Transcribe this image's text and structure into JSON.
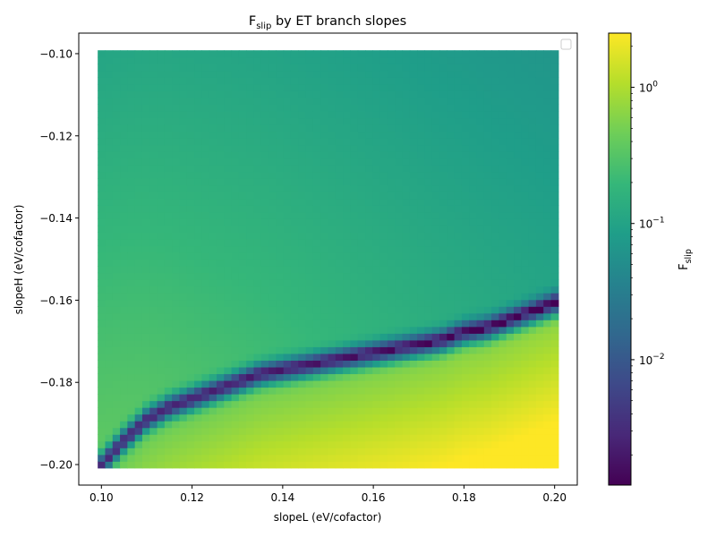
{
  "chart_data": {
    "type": "heatmap",
    "title": "F",
    "title_sub": "slip",
    "title_rest": " by ET branch slopes",
    "xlabel": "slopeL (eV/cofactor)",
    "ylabel": "slopeH (eV/cofactor)",
    "xlim": [
      0.095,
      0.205
    ],
    "ylim": [
      -0.205,
      -0.095
    ],
    "x_range": [
      0.1,
      0.2
    ],
    "y_range": [
      -0.2,
      -0.1
    ],
    "x_ticks": [
      0.1,
      0.12,
      0.14,
      0.16,
      0.18,
      0.2
    ],
    "x_tick_labels": [
      "0.10",
      "0.12",
      "0.14",
      "0.16",
      "0.18",
      "0.20"
    ],
    "y_ticks": [
      -0.1,
      -0.12,
      -0.14,
      -0.16,
      -0.18,
      -0.2
    ],
    "y_tick_labels": [
      "−0.10",
      "−0.12",
      "−0.14",
      "−0.16",
      "−0.18",
      "−0.20"
    ],
    "colorscale": "viridis",
    "color_scale_type": "log",
    "color_range": [
      0.0012,
      2.5
    ],
    "colorbar_label": "F",
    "colorbar_label_sub": "slip",
    "colorbar_ticks": [
      {
        "value": 1,
        "base": "10",
        "exp": "0"
      },
      {
        "value": 0.1,
        "base": "10",
        "exp": "−1"
      },
      {
        "value": 0.01,
        "base": "10",
        "exp": "−2"
      }
    ],
    "minimum_curve": [
      [
        0.1,
        -0.2
      ],
      [
        0.105,
        -0.194
      ],
      [
        0.11,
        -0.189
      ],
      [
        0.115,
        -0.186
      ],
      [
        0.12,
        -0.184
      ],
      [
        0.125,
        -0.182
      ],
      [
        0.13,
        -0.18
      ],
      [
        0.135,
        -0.178
      ],
      [
        0.14,
        -0.177
      ],
      [
        0.145,
        -0.176
      ],
      [
        0.15,
        -0.175
      ],
      [
        0.155,
        -0.174
      ],
      [
        0.16,
        -0.173
      ],
      [
        0.165,
        -0.172
      ],
      [
        0.17,
        -0.171
      ],
      [
        0.175,
        -0.17
      ],
      [
        0.18,
        -0.168
      ],
      [
        0.185,
        -0.167
      ],
      [
        0.19,
        -0.165
      ],
      [
        0.195,
        -0.163
      ],
      [
        0.2,
        -0.161
      ]
    ],
    "legend": {
      "placement": "top-right",
      "entries": []
    },
    "grid": false
  },
  "colors": {
    "viridis": [
      "#440154",
      "#482878",
      "#3e4989",
      "#31688e",
      "#26828e",
      "#1f9e89",
      "#35b779",
      "#6ece58",
      "#b5de2b",
      "#fde725"
    ]
  }
}
